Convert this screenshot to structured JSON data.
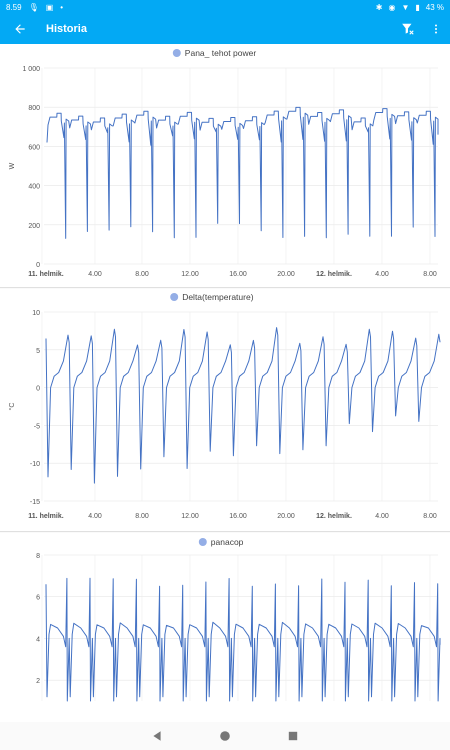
{
  "status_bar": {
    "time": "8.59",
    "battery": "43 %"
  },
  "app_bar": {
    "title": "Historia"
  },
  "icons": {
    "back": "arrow-left-icon",
    "filter_clear": "filter-remove-icon",
    "more": "more-vertical-icon"
  },
  "colors": {
    "primary": "#03a9f4",
    "series": "#4472c4",
    "legend_dot": "#94aee6"
  },
  "chart_data": [
    {
      "type": "line",
      "title": "Pana_ tehot power",
      "ylabel": "W",
      "ylim": [
        0,
        1000
      ],
      "yticks": [
        "1 000",
        "800",
        "600",
        "400",
        "200",
        "0"
      ],
      "xticks": [
        "11. helmik.",
        "4.00",
        "8.00",
        "12.00",
        "16.00",
        "20.00",
        "12. helmik.",
        "4.00",
        "8.00"
      ],
      "series": [
        {
          "name": "Pana_ tehot power",
          "pattern": "step cycles 720–790 W with dips to ~120–200 W"
        }
      ]
    },
    {
      "type": "line",
      "title": "Delta(temperature)",
      "ylabel": "°C",
      "ylim": [
        -15,
        10
      ],
      "yticks": [
        "10",
        "5",
        "0",
        "-5",
        "-10",
        "-15"
      ],
      "xticks": [
        "11. helmik.",
        "4.00",
        "8.00",
        "12.00",
        "16.00",
        "20.00",
        "12. helmik.",
        "4.00",
        "8.00"
      ],
      "series": [
        {
          "name": "Delta(temperature)",
          "pattern": "sawtooth rising to 5–8 °C then dropping to -5…-14 °C"
        }
      ]
    },
    {
      "type": "line",
      "title": "panacop",
      "ylim": [
        1,
        8
      ],
      "yticks": [
        "8",
        "6",
        "4",
        "2"
      ],
      "series": [
        {
          "name": "panacop",
          "pattern": "plateaus ~4.5 with spikes to ~6.8 and drops to ~1"
        }
      ]
    }
  ]
}
